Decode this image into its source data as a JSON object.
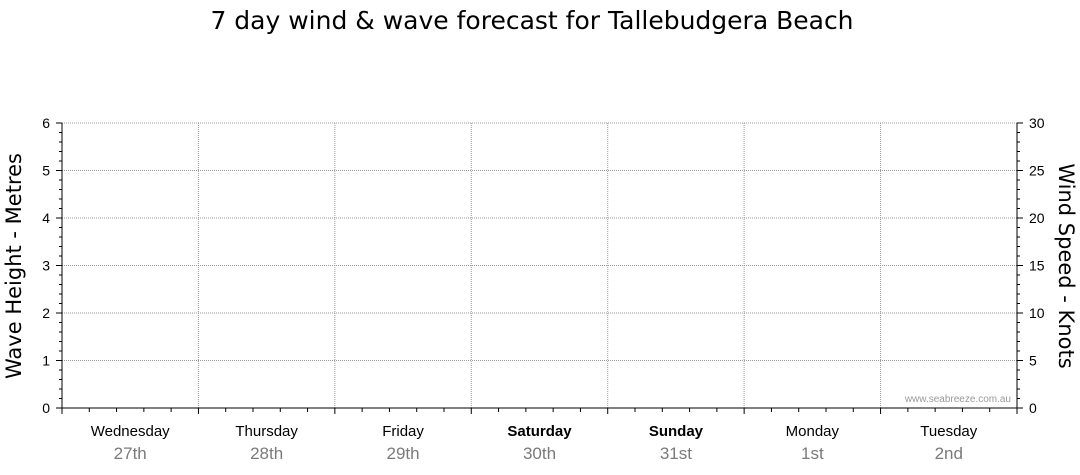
{
  "chart_data": {
    "type": "line",
    "title": "7 day wind & wave forecast for Tallebudgera Beach",
    "ylabel_left": "Wave Height - Metres",
    "ylabel_right": "Wind Speed - Knots",
    "ylim_left": [
      0,
      6
    ],
    "ylim_right": [
      0,
      30
    ],
    "yticks_left": [
      "0",
      "1",
      "2",
      "3",
      "4",
      "5",
      "6"
    ],
    "yticks_right": [
      "0",
      "5",
      "10",
      "15",
      "20",
      "25",
      "30"
    ],
    "grid": true,
    "days": [
      {
        "name": "Wednesday",
        "date": "27th",
        "bold": false
      },
      {
        "name": "Thursday",
        "date": "28th",
        "bold": false
      },
      {
        "name": "Friday",
        "date": "29th",
        "bold": false
      },
      {
        "name": "Saturday",
        "date": "30th",
        "bold": true
      },
      {
        "name": "Sunday",
        "date": "31st",
        "bold": true
      },
      {
        "name": "Monday",
        "date": "1st",
        "bold": false
      },
      {
        "name": "Tuesday",
        "date": "2nd",
        "bold": false
      }
    ],
    "series": []
  },
  "watermark": "www.seabreeze.com.au",
  "colors": {
    "grid": "#9a9a9a",
    "axis": "#000000",
    "date_text": "#7a7a7a"
  }
}
